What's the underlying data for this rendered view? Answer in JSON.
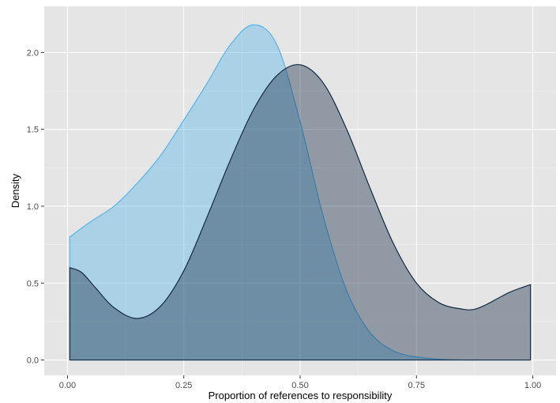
{
  "chart_data": {
    "type": "area",
    "title": "",
    "xlabel": "Proportion of references to responsibility",
    "ylabel": "Density",
    "xlim": [
      -0.05,
      1.05
    ],
    "ylim": [
      -0.1,
      2.3
    ],
    "x_ticks": [
      0,
      0.25,
      0.5,
      0.75,
      1
    ],
    "x_tick_labels": [
      "0.00",
      "0.25",
      "0.50",
      "0.75",
      "1.00"
    ],
    "y_ticks": [
      0,
      0.5,
      1,
      1.5,
      2
    ],
    "y_tick_labels": [
      "0.0",
      "0.5",
      "1.0",
      "1.5",
      "2.0"
    ],
    "grid": true,
    "legend": "none",
    "series": [
      {
        "x": [
          0.005,
          0.05,
          0.1,
          0.15,
          0.2,
          0.25,
          0.3,
          0.35,
          0.4,
          0.45,
          0.5,
          0.55,
          0.6,
          0.65,
          0.7,
          0.75,
          0.8,
          0.85,
          0.9,
          0.95,
          0.995
        ],
        "values": [
          0.8,
          0.9,
          1.0,
          1.15,
          1.33,
          1.56,
          1.8,
          2.05,
          2.18,
          2.05,
          1.55,
          0.93,
          0.45,
          0.18,
          0.06,
          0.02,
          0.005,
          0,
          0,
          0,
          0
        ],
        "fill": "#56b4e9",
        "stroke": "#56b4e9"
      },
      {
        "x": [
          0.005,
          0.03,
          0.06,
          0.1,
          0.15,
          0.2,
          0.25,
          0.3,
          0.35,
          0.4,
          0.45,
          0.5,
          0.55,
          0.6,
          0.65,
          0.7,
          0.75,
          0.8,
          0.85,
          0.875,
          0.9,
          0.95,
          0.995
        ],
        "values": [
          0.6,
          0.57,
          0.47,
          0.34,
          0.27,
          0.35,
          0.58,
          0.93,
          1.3,
          1.63,
          1.85,
          1.92,
          1.8,
          1.5,
          1.12,
          0.76,
          0.5,
          0.37,
          0.33,
          0.33,
          0.36,
          0.44,
          0.49
        ],
        "fill": "#132b43",
        "stroke": "#132b43"
      }
    ]
  }
}
